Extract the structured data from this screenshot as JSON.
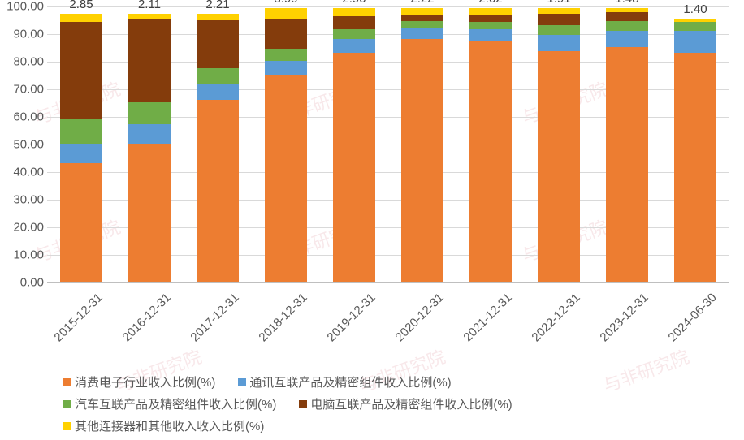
{
  "chart": {
    "type": "stacked-bar",
    "background_color": "#ffffff",
    "grid_color": "#d9d9d9",
    "axis_color": "#bfbfbf",
    "text_color": "#595959",
    "label_fontsize": 15,
    "ylim": [
      0,
      100
    ],
    "ytick_step": 10,
    "ytick_decimals": 2,
    "bar_width_ratio": 0.62,
    "categories": [
      "2015-12-31",
      "2016-12-31",
      "2017-12-31",
      "2018-12-31",
      "2019-12-31",
      "2020-12-31",
      "2021-12-31",
      "2022-12-31",
      "2023-12-31",
      "2024-06-30"
    ],
    "series": [
      {
        "key": "s1",
        "label": "消费电子行业收入比例(%)",
        "color": "#ed7d31"
      },
      {
        "key": "s2",
        "label": "通讯互联产品及精密组件收入比例(%)",
        "color": "#5b9bd5"
      },
      {
        "key": "s3",
        "label": "汽车互联产品及精密组件收入比例(%)",
        "color": "#70ad47"
      },
      {
        "key": "s4",
        "label": "电脑互联产品及精密组件收入比例(%)",
        "color": "#843c0c"
      },
      {
        "key": "s5",
        "label": "其他连接器和其他收入收入比例(%)",
        "color": "#ffd100"
      }
    ],
    "values": {
      "s1": [
        43.0,
        50.0,
        66.0,
        75.0,
        83.0,
        88.0,
        87.5,
        83.5,
        85.0,
        83.0
      ],
      "s2": [
        7.0,
        7.0,
        5.5,
        5.0,
        5.0,
        4.0,
        4.0,
        6.0,
        6.0,
        8.0
      ],
      "s3": [
        9.0,
        8.0,
        6.0,
        4.5,
        3.5,
        2.5,
        2.5,
        3.5,
        3.5,
        3.0
      ],
      "s4": [
        35.15,
        29.89,
        17.29,
        10.51,
        4.6,
        2.28,
        2.38,
        4.09,
        3.02,
        0.0
      ],
      "s5": [
        2.85,
        2.11,
        2.21,
        3.99,
        2.9,
        2.22,
        2.62,
        1.91,
        1.48,
        1.4
      ]
    },
    "data_labels": [
      "2.85",
      "2.11",
      "2.21",
      "3.99",
      "2.90",
      "2.22",
      "2.62",
      "1.91",
      "1.48",
      "1.40"
    ],
    "legend_layout": [
      [
        0,
        1
      ],
      [
        2,
        3
      ],
      [
        4
      ]
    ],
    "xlabel_rotation_deg": -45
  },
  "watermark": {
    "text": "与非研究院"
  }
}
